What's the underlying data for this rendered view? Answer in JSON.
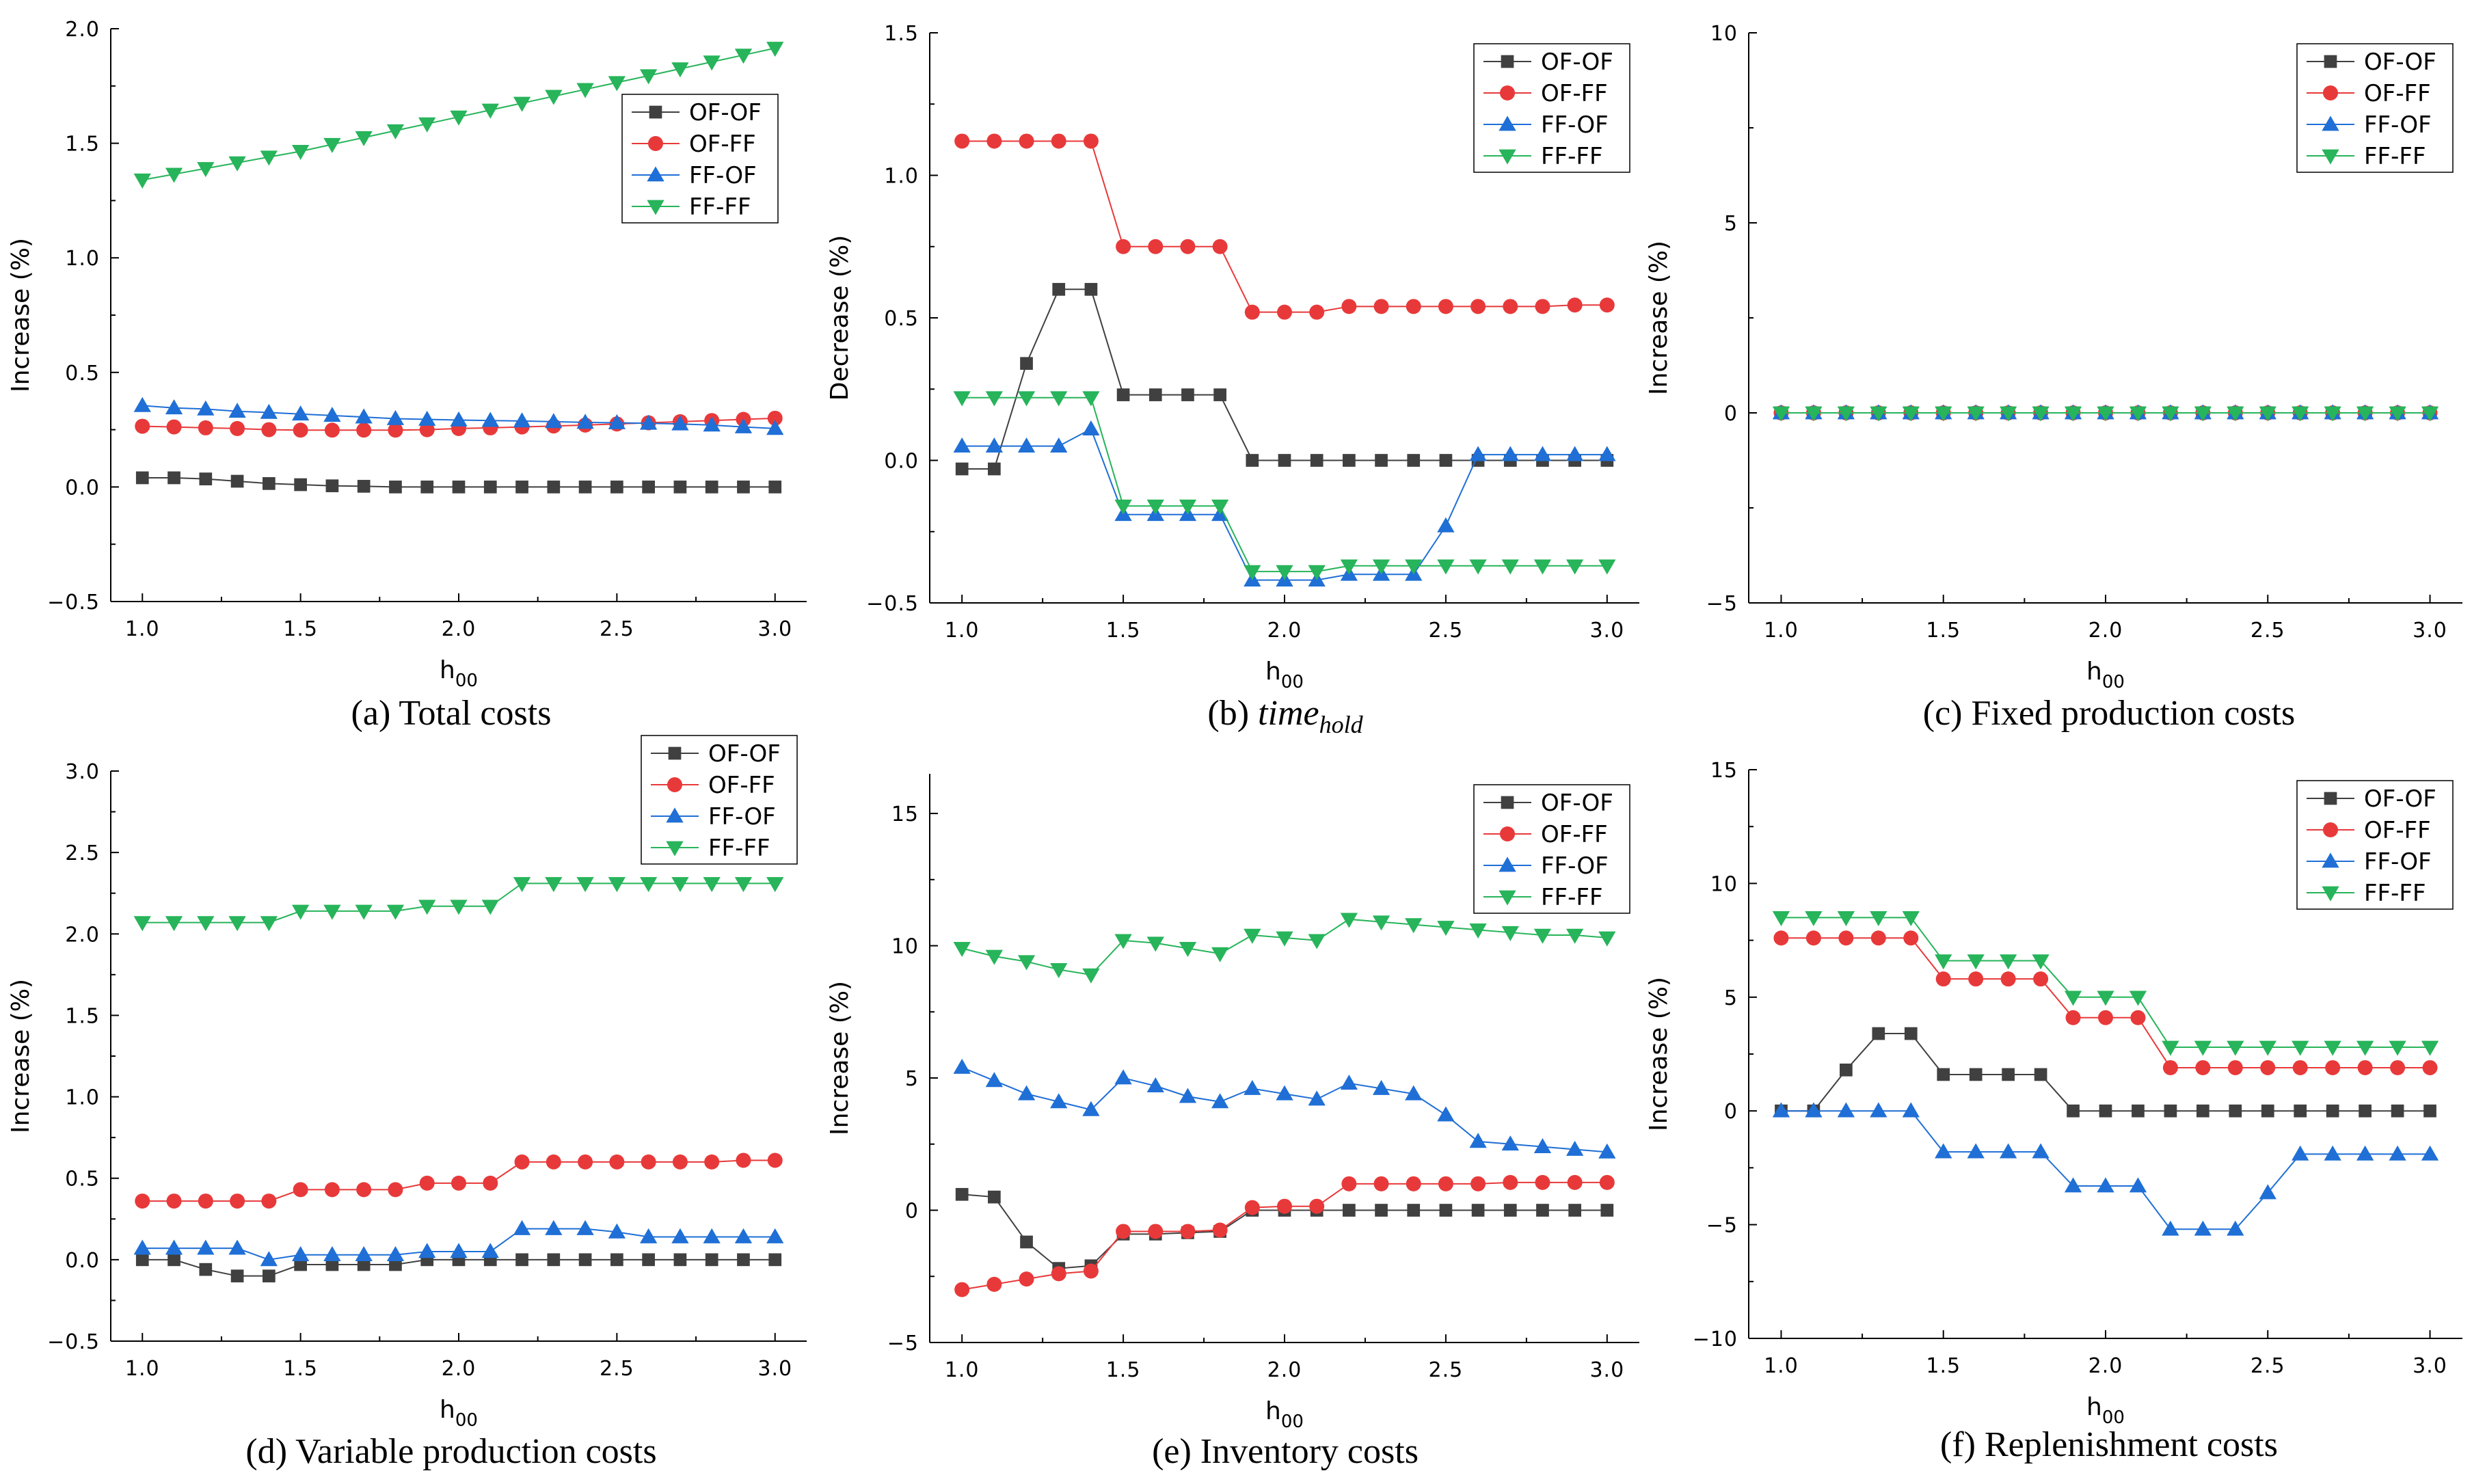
{
  "figure": {
    "charts_order": [
      "a",
      "b",
      "c",
      "d",
      "e",
      "f"
    ]
  },
  "chart_data": [
    {
      "id": "a",
      "type": "line",
      "caption": "(a) Total costs",
      "xlabel": "h",
      "xlabel_sub": "00",
      "ylabel": "Increase (%)",
      "xlim": [
        0.9,
        3.1
      ],
      "ylim": [
        -0.5,
        2.0
      ],
      "xticks": [
        1.0,
        1.5,
        2.0,
        2.5,
        3.0
      ],
      "xtick_labels": [
        "1.0",
        "1.5",
        "2.0",
        "2.5",
        "3.0"
      ],
      "yticks": [
        -0.5,
        0.0,
        0.5,
        1.0,
        1.5,
        2.0
      ],
      "ytick_labels": [
        "−0.5",
        "0.0",
        "0.5",
        "1.0",
        "1.5",
        "2.0"
      ],
      "legend_position": "upper-right",
      "x": [
        1.0,
        1.1,
        1.2,
        1.3,
        1.4,
        1.5,
        1.6,
        1.7,
        1.8,
        1.9,
        2.0,
        2.1,
        2.2,
        2.3,
        2.4,
        2.5,
        2.6,
        2.7,
        2.8,
        2.9,
        3.0
      ],
      "series": [
        {
          "name": "OF-OF",
          "values": [
            0.04,
            0.04,
            0.035,
            0.025,
            0.015,
            0.01,
            0.005,
            0.003,
            0.0,
            0.0,
            0.0,
            0.0,
            0.0,
            0.0,
            0.0,
            0.0,
            0.0,
            0.0,
            0.0,
            0.0,
            0.0
          ]
        },
        {
          "name": "OF-FF",
          "values": [
            0.265,
            0.262,
            0.258,
            0.255,
            0.25,
            0.248,
            0.248,
            0.248,
            0.248,
            0.25,
            0.255,
            0.258,
            0.262,
            0.266,
            0.27,
            0.275,
            0.28,
            0.285,
            0.29,
            0.295,
            0.3
          ]
        },
        {
          "name": "FF-OF",
          "values": [
            0.355,
            0.345,
            0.34,
            0.33,
            0.325,
            0.318,
            0.312,
            0.305,
            0.298,
            0.295,
            0.292,
            0.29,
            0.288,
            0.285,
            0.282,
            0.28,
            0.278,
            0.275,
            0.27,
            0.262,
            0.255
          ]
        },
        {
          "name": "FF-FF",
          "values": [
            1.34,
            1.365,
            1.39,
            1.415,
            1.44,
            1.465,
            1.495,
            1.525,
            1.555,
            1.585,
            1.615,
            1.645,
            1.675,
            1.705,
            1.735,
            1.765,
            1.795,
            1.825,
            1.855,
            1.885,
            1.915
          ]
        }
      ]
    },
    {
      "id": "b",
      "type": "line",
      "caption": "(b) ",
      "caption_italic": "time",
      "caption_sub": "hold",
      "xlabel": "h",
      "xlabel_sub": "00",
      "ylabel": "Decrease (%)",
      "xlim": [
        0.9,
        3.1
      ],
      "ylim": [
        -0.5,
        1.5
      ],
      "xticks": [
        1.0,
        1.5,
        2.0,
        2.5,
        3.0
      ],
      "xtick_labels": [
        "1.0",
        "1.5",
        "2.0",
        "2.5",
        "3.0"
      ],
      "yticks": [
        -0.5,
        0.0,
        0.5,
        1.0,
        1.5
      ],
      "ytick_labels": [
        "−0.5",
        "0.0",
        "0.5",
        "1.0",
        "1.5"
      ],
      "legend_position": "top-right",
      "x": [
        1.0,
        1.1,
        1.2,
        1.3,
        1.4,
        1.5,
        1.6,
        1.7,
        1.8,
        1.9,
        2.0,
        2.1,
        2.2,
        2.3,
        2.4,
        2.5,
        2.6,
        2.7,
        2.8,
        2.9,
        3.0
      ],
      "series": [
        {
          "name": "OF-OF",
          "values": [
            -0.03,
            -0.03,
            0.34,
            0.6,
            0.6,
            0.23,
            0.23,
            0.23,
            0.23,
            0.0,
            0.0,
            0.0,
            0.0,
            0.0,
            0.0,
            0.0,
            0.0,
            0.0,
            0.0,
            0.0,
            0.0
          ]
        },
        {
          "name": "OF-FF",
          "values": [
            1.12,
            1.12,
            1.12,
            1.12,
            1.12,
            0.75,
            0.75,
            0.75,
            0.75,
            0.52,
            0.52,
            0.52,
            0.54,
            0.54,
            0.54,
            0.54,
            0.54,
            0.54,
            0.54,
            0.545,
            0.545
          ]
        },
        {
          "name": "FF-OF",
          "values": [
            0.05,
            0.05,
            0.05,
            0.05,
            0.11,
            -0.19,
            -0.19,
            -0.19,
            -0.19,
            -0.42,
            -0.42,
            -0.42,
            -0.4,
            -0.4,
            -0.4,
            -0.23,
            0.02,
            0.02,
            0.02,
            0.02,
            0.02
          ]
        },
        {
          "name": "FF-FF",
          "values": [
            0.22,
            0.22,
            0.22,
            0.22,
            0.22,
            -0.16,
            -0.16,
            -0.16,
            -0.16,
            -0.39,
            -0.39,
            -0.39,
            -0.37,
            -0.37,
            -0.37,
            -0.37,
            -0.37,
            -0.37,
            -0.37,
            -0.37,
            -0.37
          ]
        }
      ]
    },
    {
      "id": "c",
      "type": "line",
      "caption": "(c) Fixed production costs",
      "xlabel": "h",
      "xlabel_sub": "00",
      "ylabel": "Increase (%)",
      "xlim": [
        0.9,
        3.1
      ],
      "ylim": [
        -5,
        10
      ],
      "xticks": [
        1.0,
        1.5,
        2.0,
        2.5,
        3.0
      ],
      "xtick_labels": [
        "1.0",
        "1.5",
        "2.0",
        "2.5",
        "3.0"
      ],
      "yticks": [
        -5,
        0,
        5,
        10
      ],
      "ytick_labels": [
        "−5",
        "0",
        "5",
        "10"
      ],
      "legend_position": "top-right",
      "x": [
        1.0,
        1.1,
        1.2,
        1.3,
        1.4,
        1.5,
        1.6,
        1.7,
        1.8,
        1.9,
        2.0,
        2.1,
        2.2,
        2.3,
        2.4,
        2.5,
        2.6,
        2.7,
        2.8,
        2.9,
        3.0
      ],
      "series": [
        {
          "name": "OF-OF",
          "values": [
            0,
            0,
            0,
            0,
            0,
            0,
            0,
            0,
            0,
            0,
            0,
            0,
            0,
            0,
            0,
            0,
            0,
            0,
            0,
            0,
            0
          ]
        },
        {
          "name": "OF-FF",
          "values": [
            0,
            0,
            0,
            0,
            0,
            0,
            0,
            0,
            0,
            0,
            0,
            0,
            0,
            0,
            0,
            0,
            0,
            0,
            0,
            0,
            0
          ]
        },
        {
          "name": "FF-OF",
          "values": [
            0,
            0,
            0,
            0,
            0,
            0,
            0,
            0,
            0,
            0,
            0,
            0,
            0,
            0,
            0,
            0,
            0,
            0,
            0,
            0,
            0
          ]
        },
        {
          "name": "FF-FF",
          "values": [
            0,
            0,
            0,
            0,
            0,
            0,
            0,
            0,
            0,
            0,
            0,
            0,
            0,
            0,
            0,
            0,
            0,
            0,
            0,
            0,
            0
          ]
        }
      ]
    },
    {
      "id": "d",
      "type": "line",
      "caption": "(d) Variable production costs",
      "xlabel": "h",
      "xlabel_sub": "00",
      "ylabel": "Increase (%)",
      "xlim": [
        0.9,
        3.1
      ],
      "ylim": [
        -0.5,
        3.0
      ],
      "xticks": [
        1.0,
        1.5,
        2.0,
        2.5,
        3.0
      ],
      "xtick_labels": [
        "1.0",
        "1.5",
        "2.0",
        "2.5",
        "3.0"
      ],
      "yticks": [
        -0.5,
        0.0,
        0.5,
        1.0,
        1.5,
        2.0,
        2.5,
        3.0
      ],
      "ytick_labels": [
        "−0.5",
        "0.0",
        "0.5",
        "1.0",
        "1.5",
        "2.0",
        "2.5",
        "3.0"
      ],
      "legend_position": "top-right",
      "x": [
        1.0,
        1.1,
        1.2,
        1.3,
        1.4,
        1.5,
        1.6,
        1.7,
        1.8,
        1.9,
        2.0,
        2.1,
        2.2,
        2.3,
        2.4,
        2.5,
        2.6,
        2.7,
        2.8,
        2.9,
        3.0
      ],
      "series": [
        {
          "name": "OF-OF",
          "values": [
            0.0,
            0.0,
            -0.06,
            -0.1,
            -0.1,
            -0.03,
            -0.03,
            -0.03,
            -0.03,
            0.0,
            0.0,
            0.0,
            0.0,
            0.0,
            0.0,
            0.0,
            0.0,
            0.0,
            0.0,
            0.0,
            0.0
          ]
        },
        {
          "name": "OF-FF",
          "values": [
            0.36,
            0.36,
            0.36,
            0.36,
            0.36,
            0.43,
            0.43,
            0.43,
            0.43,
            0.47,
            0.47,
            0.47,
            0.6,
            0.6,
            0.6,
            0.6,
            0.6,
            0.6,
            0.6,
            0.61,
            0.61
          ]
        },
        {
          "name": "FF-OF",
          "values": [
            0.07,
            0.07,
            0.07,
            0.07,
            0.0,
            0.03,
            0.03,
            0.03,
            0.03,
            0.05,
            0.05,
            0.05,
            0.19,
            0.19,
            0.19,
            0.17,
            0.14,
            0.14,
            0.14,
            0.14,
            0.14
          ]
        },
        {
          "name": "FF-FF",
          "values": [
            2.07,
            2.07,
            2.07,
            2.07,
            2.07,
            2.14,
            2.14,
            2.14,
            2.14,
            2.17,
            2.17,
            2.17,
            2.31,
            2.31,
            2.31,
            2.31,
            2.31,
            2.31,
            2.31,
            2.31,
            2.31
          ]
        }
      ]
    },
    {
      "id": "e",
      "type": "line",
      "caption": "(e) Inventory costs",
      "xlabel": "h",
      "xlabel_sub": "00",
      "ylabel": "Increase (%)",
      "xlim": [
        0.9,
        3.1
      ],
      "ylim": [
        -5,
        16.5
      ],
      "xticks": [
        1.0,
        1.5,
        2.0,
        2.5,
        3.0
      ],
      "xtick_labels": [
        "1.0",
        "1.5",
        "2.0",
        "2.5",
        "3.0"
      ],
      "yticks": [
        -5,
        0,
        5,
        10,
        15
      ],
      "ytick_labels": [
        "−5",
        "0",
        "5",
        "10",
        "15"
      ],
      "legend_position": "top-right",
      "x": [
        1.0,
        1.1,
        1.2,
        1.3,
        1.4,
        1.5,
        1.6,
        1.7,
        1.8,
        1.9,
        2.0,
        2.1,
        2.2,
        2.3,
        2.4,
        2.5,
        2.6,
        2.7,
        2.8,
        2.9,
        3.0
      ],
      "series": [
        {
          "name": "OF-OF",
          "values": [
            0.6,
            0.5,
            -1.2,
            -2.2,
            -2.1,
            -0.9,
            -0.9,
            -0.85,
            -0.8,
            0.0,
            0.0,
            0.0,
            0.0,
            0.0,
            0.0,
            0.0,
            0.0,
            0.0,
            0.0,
            0.0,
            0.0
          ]
        },
        {
          "name": "OF-FF",
          "values": [
            -3.0,
            -2.8,
            -2.6,
            -2.4,
            -2.3,
            -0.8,
            -0.8,
            -0.8,
            -0.75,
            0.1,
            0.15,
            0.15,
            1.0,
            1.0,
            1.0,
            1.0,
            1.0,
            1.05,
            1.05,
            1.05,
            1.05
          ]
        },
        {
          "name": "FF-OF",
          "values": [
            5.4,
            4.9,
            4.4,
            4.1,
            3.8,
            5.0,
            4.7,
            4.3,
            4.1,
            4.6,
            4.4,
            4.2,
            4.8,
            4.6,
            4.4,
            3.6,
            2.6,
            2.5,
            2.4,
            2.3,
            2.2
          ]
        },
        {
          "name": "FF-FF",
          "values": [
            9.9,
            9.6,
            9.4,
            9.1,
            8.9,
            10.2,
            10.1,
            9.9,
            9.7,
            10.4,
            10.3,
            10.2,
            11.0,
            10.9,
            10.8,
            10.7,
            10.6,
            10.5,
            10.4,
            10.4,
            10.3
          ]
        }
      ]
    },
    {
      "id": "f",
      "type": "line",
      "caption": "(f) Replenishment costs",
      "xlabel": "h",
      "xlabel_sub": "00",
      "ylabel": "Increase (%)",
      "xlim": [
        0.9,
        3.1
      ],
      "ylim": [
        -10,
        15
      ],
      "xticks": [
        1.0,
        1.5,
        2.0,
        2.5,
        3.0
      ],
      "xtick_labels": [
        "1.0",
        "1.5",
        "2.0",
        "2.5",
        "3.0"
      ],
      "yticks": [
        -10,
        -5,
        0,
        5,
        10,
        15
      ],
      "ytick_labels": [
        "−10",
        "−5",
        "0",
        "5",
        "10",
        "15"
      ],
      "legend_position": "top-right",
      "x": [
        1.0,
        1.1,
        1.2,
        1.3,
        1.4,
        1.5,
        1.6,
        1.7,
        1.8,
        1.9,
        2.0,
        2.1,
        2.2,
        2.3,
        2.4,
        2.5,
        2.6,
        2.7,
        2.8,
        2.9,
        3.0
      ],
      "series": [
        {
          "name": "OF-OF",
          "values": [
            0.0,
            0.0,
            1.8,
            3.4,
            3.4,
            1.6,
            1.6,
            1.6,
            1.6,
            0.0,
            0.0,
            0.0,
            0.0,
            0.0,
            0.0,
            0.0,
            0.0,
            0.0,
            0.0,
            0.0,
            0.0
          ]
        },
        {
          "name": "OF-FF",
          "values": [
            7.6,
            7.6,
            7.6,
            7.6,
            7.6,
            5.8,
            5.8,
            5.8,
            5.8,
            4.1,
            4.1,
            4.1,
            1.9,
            1.9,
            1.9,
            1.9,
            1.9,
            1.9,
            1.9,
            1.9,
            1.9
          ]
        },
        {
          "name": "FF-OF",
          "values": [
            0.0,
            0.0,
            0.0,
            0.0,
            0.0,
            -1.8,
            -1.8,
            -1.8,
            -1.8,
            -3.3,
            -3.3,
            -3.3,
            -5.2,
            -5.2,
            -5.2,
            -3.6,
            -1.9,
            -1.9,
            -1.9,
            -1.9,
            -1.9
          ]
        },
        {
          "name": "FF-FF",
          "values": [
            8.5,
            8.5,
            8.5,
            8.5,
            8.5,
            6.6,
            6.6,
            6.6,
            6.6,
            5.0,
            5.0,
            5.0,
            2.8,
            2.8,
            2.8,
            2.8,
            2.8,
            2.8,
            2.8,
            2.8,
            2.8
          ]
        }
      ]
    }
  ],
  "series_styles": {
    "OF-OF": {
      "color": "#404040",
      "marker": "square"
    },
    "OF-FF": {
      "color": "#e8393a",
      "marker": "circle"
    },
    "FF-OF": {
      "color": "#1f6fd6",
      "marker": "triangle-up"
    },
    "FF-FF": {
      "color": "#27b45a",
      "marker": "triangle-down"
    }
  }
}
